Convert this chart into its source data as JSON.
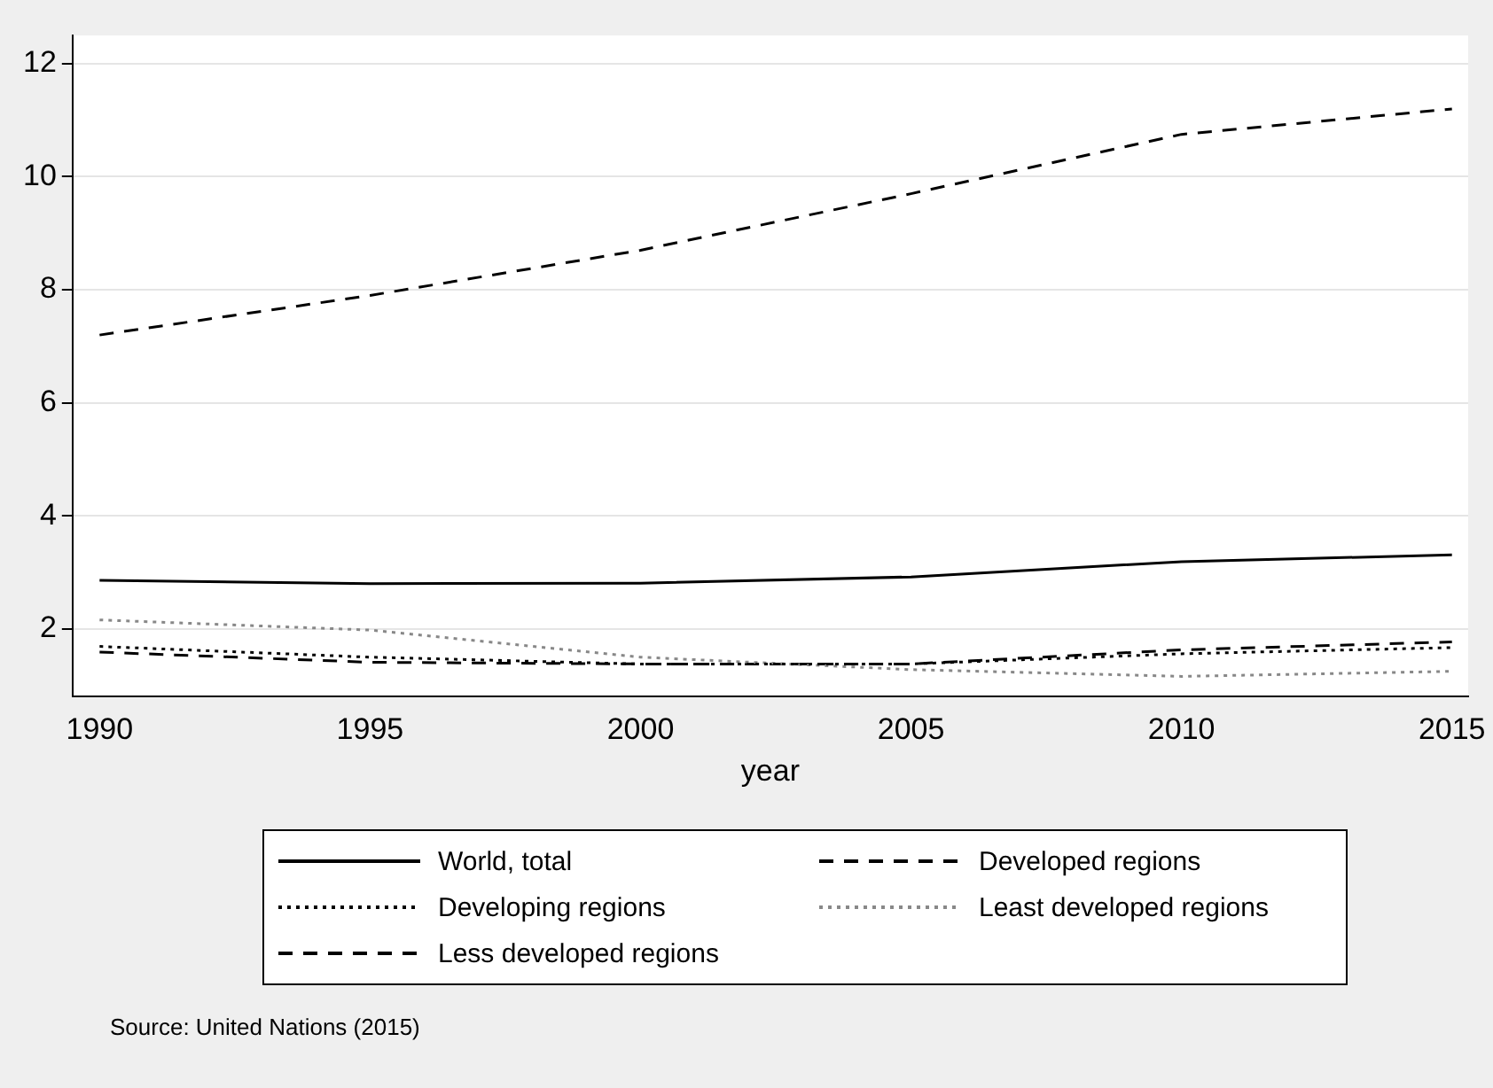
{
  "chart_data": {
    "type": "line",
    "xlabel": "year",
    "x": [
      1990,
      1995,
      2000,
      2005,
      2010,
      2015
    ],
    "xlim": [
      1989.5,
      2015.3
    ],
    "xticks": [
      1990,
      1995,
      2000,
      2005,
      2010,
      2015
    ],
    "ylim": [
      0.8,
      12.5
    ],
    "yticks": [
      2,
      4,
      6,
      8,
      10,
      12
    ],
    "grid": "y",
    "legend": "bottom",
    "marker": "none",
    "series": [
      {
        "name": "World, total",
        "color": "#000000",
        "line_style": "solid",
        "values": [
          2.86,
          2.8,
          2.81,
          2.92,
          3.19,
          3.31
        ]
      },
      {
        "name": "Developed regions",
        "color": "#000000",
        "line_style": "dashed",
        "values": [
          7.2,
          7.9,
          8.7,
          9.7,
          10.75,
          11.2
        ]
      },
      {
        "name": "Developing regions",
        "color": "#000000",
        "line_style": "dotted",
        "values": [
          1.69,
          1.5,
          1.38,
          1.38,
          1.56,
          1.67
        ]
      },
      {
        "name": "Least developed regions",
        "color": "#888888",
        "line_style": "dotted",
        "values": [
          2.16,
          1.98,
          1.5,
          1.28,
          1.16,
          1.25
        ]
      },
      {
        "name": "Less developed regions",
        "color": "#000000",
        "line_style": "dashed",
        "values": [
          1.59,
          1.41,
          1.38,
          1.38,
          1.63,
          1.77
        ]
      }
    ],
    "annotations": [
      "Source: United Nations (2015)"
    ]
  }
}
